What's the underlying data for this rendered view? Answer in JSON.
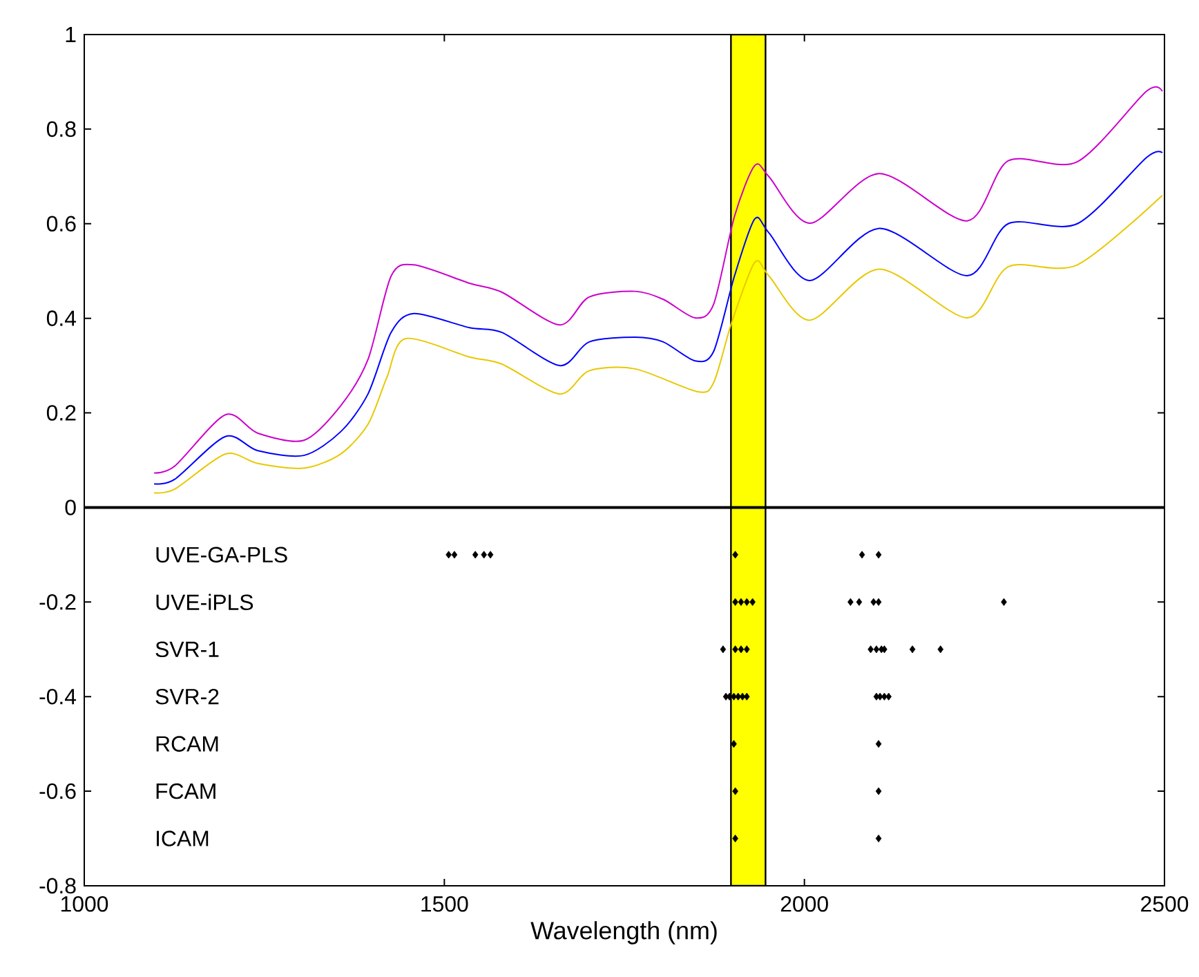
{
  "chart_data": {
    "type": "line",
    "xlabel": "Wavelength (nm)",
    "xlim": [
      1000,
      2500
    ],
    "xticks": [
      1000,
      1500,
      2000,
      2500
    ],
    "ylim": [
      -0.8,
      1
    ],
    "yticks": [
      -0.8,
      -0.6,
      -0.4,
      -0.2,
      0,
      0.2,
      0.4,
      0.6,
      0.8,
      1
    ],
    "grid": false,
    "series": [
      {
        "color": "#cc00cc",
        "x": [
          1097,
          1126,
          1196,
          1241,
          1305,
          1356,
          1394,
          1426,
          1458,
          1535,
          1580,
          1660,
          1701,
          1765,
          1804,
          1848,
          1874,
          1903,
          1931,
          1951,
          2008,
          2104,
          2226,
          2283,
          2379,
          2475,
          2497
        ],
        "values": [
          0.073,
          0.088,
          0.196,
          0.157,
          0.142,
          0.215,
          0.313,
          0.489,
          0.513,
          0.474,
          0.455,
          0.386,
          0.445,
          0.457,
          0.44,
          0.401,
          0.43,
          0.616,
          0.723,
          0.699,
          0.601,
          0.706,
          0.606,
          0.733,
          0.731,
          0.88,
          0.88
        ]
      },
      {
        "color": "#0000ff",
        "x": [
          1097,
          1126,
          1196,
          1241,
          1305,
          1356,
          1394,
          1426,
          1458,
          1535,
          1580,
          1660,
          1701,
          1765,
          1804,
          1848,
          1874,
          1903,
          1931,
          1951,
          2008,
          2104,
          2226,
          2283,
          2379,
          2475,
          2497
        ],
        "values": [
          0.05,
          0.06,
          0.15,
          0.12,
          0.11,
          0.16,
          0.24,
          0.37,
          0.41,
          0.38,
          0.37,
          0.3,
          0.35,
          0.36,
          0.35,
          0.31,
          0.33,
          0.49,
          0.61,
          0.58,
          0.48,
          0.59,
          0.49,
          0.6,
          0.6,
          0.74,
          0.75
        ]
      },
      {
        "color": "#e8c800",
        "x": [
          1097,
          1126,
          1196,
          1241,
          1305,
          1356,
          1394,
          1420,
          1446,
          1535,
          1580,
          1660,
          1701,
          1765,
          1851,
          1874,
          1899,
          1931,
          1951,
          2008,
          2104,
          2226,
          2283,
          2379,
          2497
        ],
        "values": [
          0.031,
          0.039,
          0.113,
          0.093,
          0.083,
          0.113,
          0.176,
          0.274,
          0.357,
          0.318,
          0.303,
          0.24,
          0.289,
          0.293,
          0.245,
          0.264,
          0.391,
          0.518,
          0.489,
          0.396,
          0.504,
          0.401,
          0.509,
          0.513,
          0.66
        ]
      },
      {
        "type": "scatter",
        "color": "#000000",
        "marker": "diamond",
        "x": [
          1506,
          1514,
          1543,
          1555,
          1564,
          1904,
          2080,
          2103
        ],
        "values": [
          -0.1,
          -0.1,
          -0.1,
          -0.1,
          -0.1,
          -0.1,
          -0.1,
          -0.1
        ]
      },
      {
        "type": "scatter",
        "color": "#000000",
        "marker": "diamond",
        "x": [
          1904,
          1912,
          1920,
          1928,
          2064,
          2076,
          2096,
          2103,
          2277
        ],
        "values": [
          -0.2,
          -0.2,
          -0.2,
          -0.2,
          -0.2,
          -0.2,
          -0.2,
          -0.2,
          -0.2
        ]
      },
      {
        "type": "scatter",
        "color": "#000000",
        "marker": "diamond",
        "x": [
          1887,
          1904,
          1912,
          1920,
          2092,
          2100,
          2107,
          2111,
          2150,
          2189
        ],
        "values": [
          -0.3,
          -0.3,
          -0.3,
          -0.3,
          -0.3,
          -0.3,
          -0.3,
          -0.3,
          -0.3,
          -0.3
        ]
      },
      {
        "type": "scatter",
        "color": "#000000",
        "marker": "diamond",
        "x": [
          1891,
          1896,
          1902,
          1908,
          1914,
          1920,
          2100,
          2105,
          2111,
          2117
        ],
        "values": [
          -0.4,
          -0.4,
          -0.4,
          -0.4,
          -0.4,
          -0.4,
          -0.4,
          -0.4,
          -0.4,
          -0.4
        ]
      },
      {
        "type": "scatter",
        "color": "#000000",
        "marker": "diamond",
        "x": [
          1902,
          2103
        ],
        "values": [
          -0.5,
          -0.5
        ]
      },
      {
        "type": "scatter",
        "color": "#000000",
        "marker": "diamond",
        "x": [
          1904,
          2103
        ],
        "values": [
          -0.6,
          -0.6
        ]
      },
      {
        "type": "scatter",
        "color": "#000000",
        "marker": "diamond",
        "x": [
          1904,
          2103
        ],
        "values": [
          -0.7,
          -0.7
        ]
      }
    ],
    "bands": [
      {
        "axis": "x",
        "from": 1898,
        "to": 1946,
        "color": "#ffff00"
      }
    ],
    "ref_lines": [
      {
        "axis": "y",
        "value": 0,
        "color": "#000000"
      }
    ],
    "annotations": [
      "UVE-GA-PLS",
      "UVE-iPLS",
      "SVR-1",
      "SVR-2",
      "RCAM",
      "FCAM",
      "ICAM"
    ]
  }
}
